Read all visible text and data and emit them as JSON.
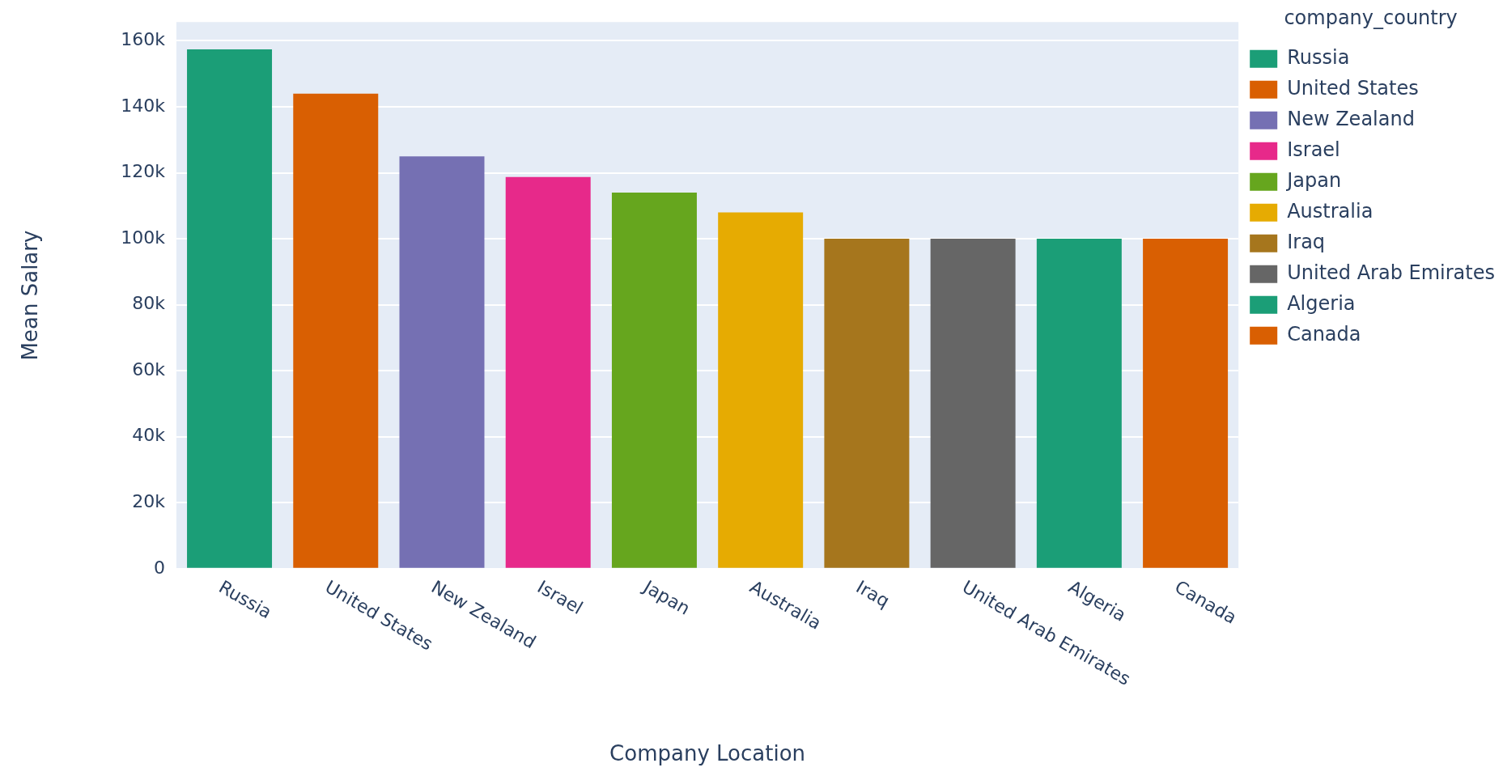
{
  "chart_data": {
    "type": "bar",
    "xlabel": "Company Location",
    "ylabel": "Mean Salary",
    "legend_title": "company_country",
    "legend": "top right",
    "grid": "y",
    "categories": [
      "Russia",
      "United States",
      "New Zealand",
      "Israel",
      "Japan",
      "Australia",
      "Iraq",
      "United Arab Emirates",
      "Algeria",
      "Canada"
    ],
    "ylim": [
      0,
      165700
    ],
    "yticks": [
      {
        "value": 0,
        "label": "0"
      },
      {
        "value": 20000,
        "label": "20k"
      },
      {
        "value": 40000,
        "label": "40k"
      },
      {
        "value": 60000,
        "label": "60k"
      },
      {
        "value": 80000,
        "label": "80k"
      },
      {
        "value": 100000,
        "label": "100k"
      },
      {
        "value": 120000,
        "label": "120k"
      },
      {
        "value": 140000,
        "label": "140k"
      },
      {
        "value": 160000,
        "label": "160k"
      }
    ],
    "series": [
      {
        "name": "Russia",
        "color": "#1b9e77",
        "values": [
          157400,
          null,
          null,
          null,
          null,
          null,
          null,
          null,
          null,
          null
        ]
      },
      {
        "name": "United States",
        "color": "#d95f02",
        "values": [
          null,
          144000,
          null,
          null,
          null,
          null,
          null,
          null,
          null,
          null
        ]
      },
      {
        "name": "New Zealand",
        "color": "#7570b3",
        "values": [
          null,
          null,
          125000,
          null,
          null,
          null,
          null,
          null,
          null,
          null
        ]
      },
      {
        "name": "Israel",
        "color": "#e7298a",
        "values": [
          null,
          null,
          null,
          118700,
          null,
          null,
          null,
          null,
          null,
          null
        ]
      },
      {
        "name": "Japan",
        "color": "#66a61e",
        "values": [
          null,
          null,
          null,
          null,
          114000,
          null,
          null,
          null,
          null,
          null
        ]
      },
      {
        "name": "Australia",
        "color": "#e6ab02",
        "values": [
          null,
          null,
          null,
          null,
          null,
          108000,
          null,
          null,
          null,
          null
        ]
      },
      {
        "name": "Iraq",
        "color": "#a6761d",
        "values": [
          null,
          null,
          null,
          null,
          null,
          null,
          100000,
          null,
          null,
          null
        ]
      },
      {
        "name": "United Arab Emirates",
        "color": "#666666",
        "values": [
          null,
          null,
          null,
          null,
          null,
          null,
          null,
          100000,
          null,
          null
        ]
      },
      {
        "name": "Algeria",
        "color": "#1b9e77",
        "values": [
          null,
          null,
          null,
          null,
          null,
          null,
          null,
          null,
          100000,
          null
        ]
      },
      {
        "name": "Canada",
        "color": "#d95f02",
        "values": [
          null,
          null,
          null,
          null,
          null,
          null,
          null,
          null,
          null,
          100000
        ]
      }
    ]
  }
}
